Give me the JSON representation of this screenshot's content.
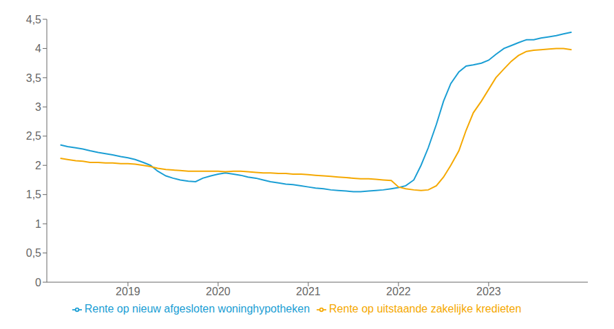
{
  "chart_data": {
    "type": "line",
    "x": [
      2018.25,
      2018.33,
      2018.42,
      2018.5,
      2018.58,
      2018.67,
      2018.75,
      2018.83,
      2018.92,
      2019.0,
      2019.08,
      2019.17,
      2019.25,
      2019.33,
      2019.42,
      2019.5,
      2019.58,
      2019.67,
      2019.75,
      2019.83,
      2019.92,
      2020.0,
      2020.08,
      2020.17,
      2020.25,
      2020.33,
      2020.42,
      2020.5,
      2020.58,
      2020.67,
      2020.75,
      2020.83,
      2020.92,
      2021.0,
      2021.08,
      2021.17,
      2021.25,
      2021.33,
      2021.42,
      2021.5,
      2021.58,
      2021.67,
      2021.75,
      2021.83,
      2021.92,
      2022.0,
      2022.08,
      2022.17,
      2022.25,
      2022.33,
      2022.42,
      2022.5,
      2022.58,
      2022.67,
      2022.75,
      2022.83,
      2022.92,
      2023.0,
      2023.08,
      2023.17,
      2023.25,
      2023.33,
      2023.42,
      2023.5,
      2023.58,
      2023.67,
      2023.75,
      2023.83,
      2023.92
    ],
    "series": [
      {
        "name": "Rente op nieuw afgesloten woninghypotheken",
        "color": "#1a9ed4",
        "values": [
          2.35,
          2.32,
          2.3,
          2.28,
          2.25,
          2.22,
          2.2,
          2.18,
          2.15,
          2.13,
          2.1,
          2.05,
          2.0,
          1.9,
          1.82,
          1.78,
          1.75,
          1.73,
          1.72,
          1.78,
          1.82,
          1.85,
          1.87,
          1.85,
          1.83,
          1.8,
          1.78,
          1.75,
          1.72,
          1.7,
          1.68,
          1.67,
          1.65,
          1.63,
          1.61,
          1.6,
          1.58,
          1.57,
          1.56,
          1.55,
          1.55,
          1.56,
          1.57,
          1.58,
          1.6,
          1.62,
          1.65,
          1.75,
          2.0,
          2.3,
          2.7,
          3.1,
          3.4,
          3.6,
          3.7,
          3.72,
          3.75,
          3.8,
          3.9,
          4.0,
          4.05,
          4.1,
          4.15,
          4.15,
          4.18,
          4.2,
          4.22,
          4.25,
          4.28
        ]
      },
      {
        "name": "Rente op uitstaande zakelijke kredieten",
        "color": "#f5a800",
        "values": [
          2.12,
          2.1,
          2.08,
          2.07,
          2.05,
          2.05,
          2.04,
          2.04,
          2.03,
          2.03,
          2.02,
          2.0,
          1.98,
          1.95,
          1.93,
          1.92,
          1.91,
          1.9,
          1.9,
          1.9,
          1.9,
          1.9,
          1.89,
          1.9,
          1.9,
          1.89,
          1.88,
          1.87,
          1.87,
          1.86,
          1.86,
          1.85,
          1.85,
          1.84,
          1.83,
          1.82,
          1.81,
          1.8,
          1.79,
          1.78,
          1.77,
          1.77,
          1.76,
          1.75,
          1.74,
          1.63,
          1.6,
          1.58,
          1.57,
          1.58,
          1.65,
          1.8,
          2.0,
          2.25,
          2.6,
          2.9,
          3.1,
          3.3,
          3.5,
          3.65,
          3.78,
          3.88,
          3.95,
          3.97,
          3.98,
          3.99,
          4.0,
          4.0,
          3.98
        ]
      }
    ],
    "xlim": [
      2018.1,
      2024.1
    ],
    "xticks": [
      2019,
      2020,
      2021,
      2022,
      2023
    ],
    "ylim": [
      0,
      4.5
    ],
    "yticks": [
      0,
      {
        "value": 0.5,
        "label": "0,5"
      },
      1,
      {
        "value": 1.5,
        "label": "1,5"
      },
      2,
      {
        "value": 2.5,
        "label": "2,5"
      },
      3,
      {
        "value": 3.5,
        "label": "3,5"
      },
      4,
      {
        "value": 4.5,
        "label": "4,5"
      }
    ],
    "grid": false,
    "legend": "bottom"
  }
}
